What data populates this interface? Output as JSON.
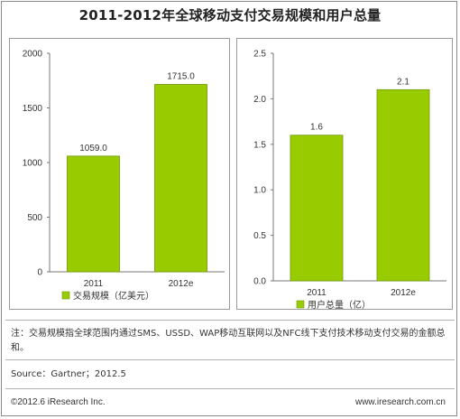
{
  "title": "2011-2012年全球移动支付交易规模和用户总量",
  "colors": {
    "bar": "#99cc00",
    "bar_edge": "#6d9a00",
    "axis": "#777777"
  },
  "chart_data": [
    {
      "type": "bar",
      "categories": [
        "2011",
        "2012e"
      ],
      "values": [
        1059.0,
        1715.0
      ],
      "value_labels": [
        "1059.0",
        "1715.0"
      ],
      "ylim": [
        0,
        2000
      ],
      "yticks": [
        "0",
        "500",
        "1000",
        "1500",
        "2000"
      ],
      "legend": "交易规模（亿美元）",
      "legend_placement": "bottom",
      "grid": false
    },
    {
      "type": "bar",
      "categories": [
        "2011",
        "2012e"
      ],
      "values": [
        1.6,
        2.1
      ],
      "value_labels": [
        "1.6",
        "2.1"
      ],
      "ylim": [
        0,
        2.5
      ],
      "yticks": [
        "0.0",
        "0.5",
        "1.0",
        "1.5",
        "2.0",
        "2.5"
      ],
      "legend": "用户总量（亿）",
      "legend_placement": "bottom",
      "grid": false
    }
  ],
  "note": "注：交易规模指全球范围内通过SMS、USSD、WAP移动互联网以及NFC线下支付技术移动支付交易的金额总和。",
  "source": "Source：Gartner；2012.5",
  "footer": {
    "copyright": "©2012.6 iResearch Inc.",
    "website": "www.iresearch.com.cn"
  }
}
